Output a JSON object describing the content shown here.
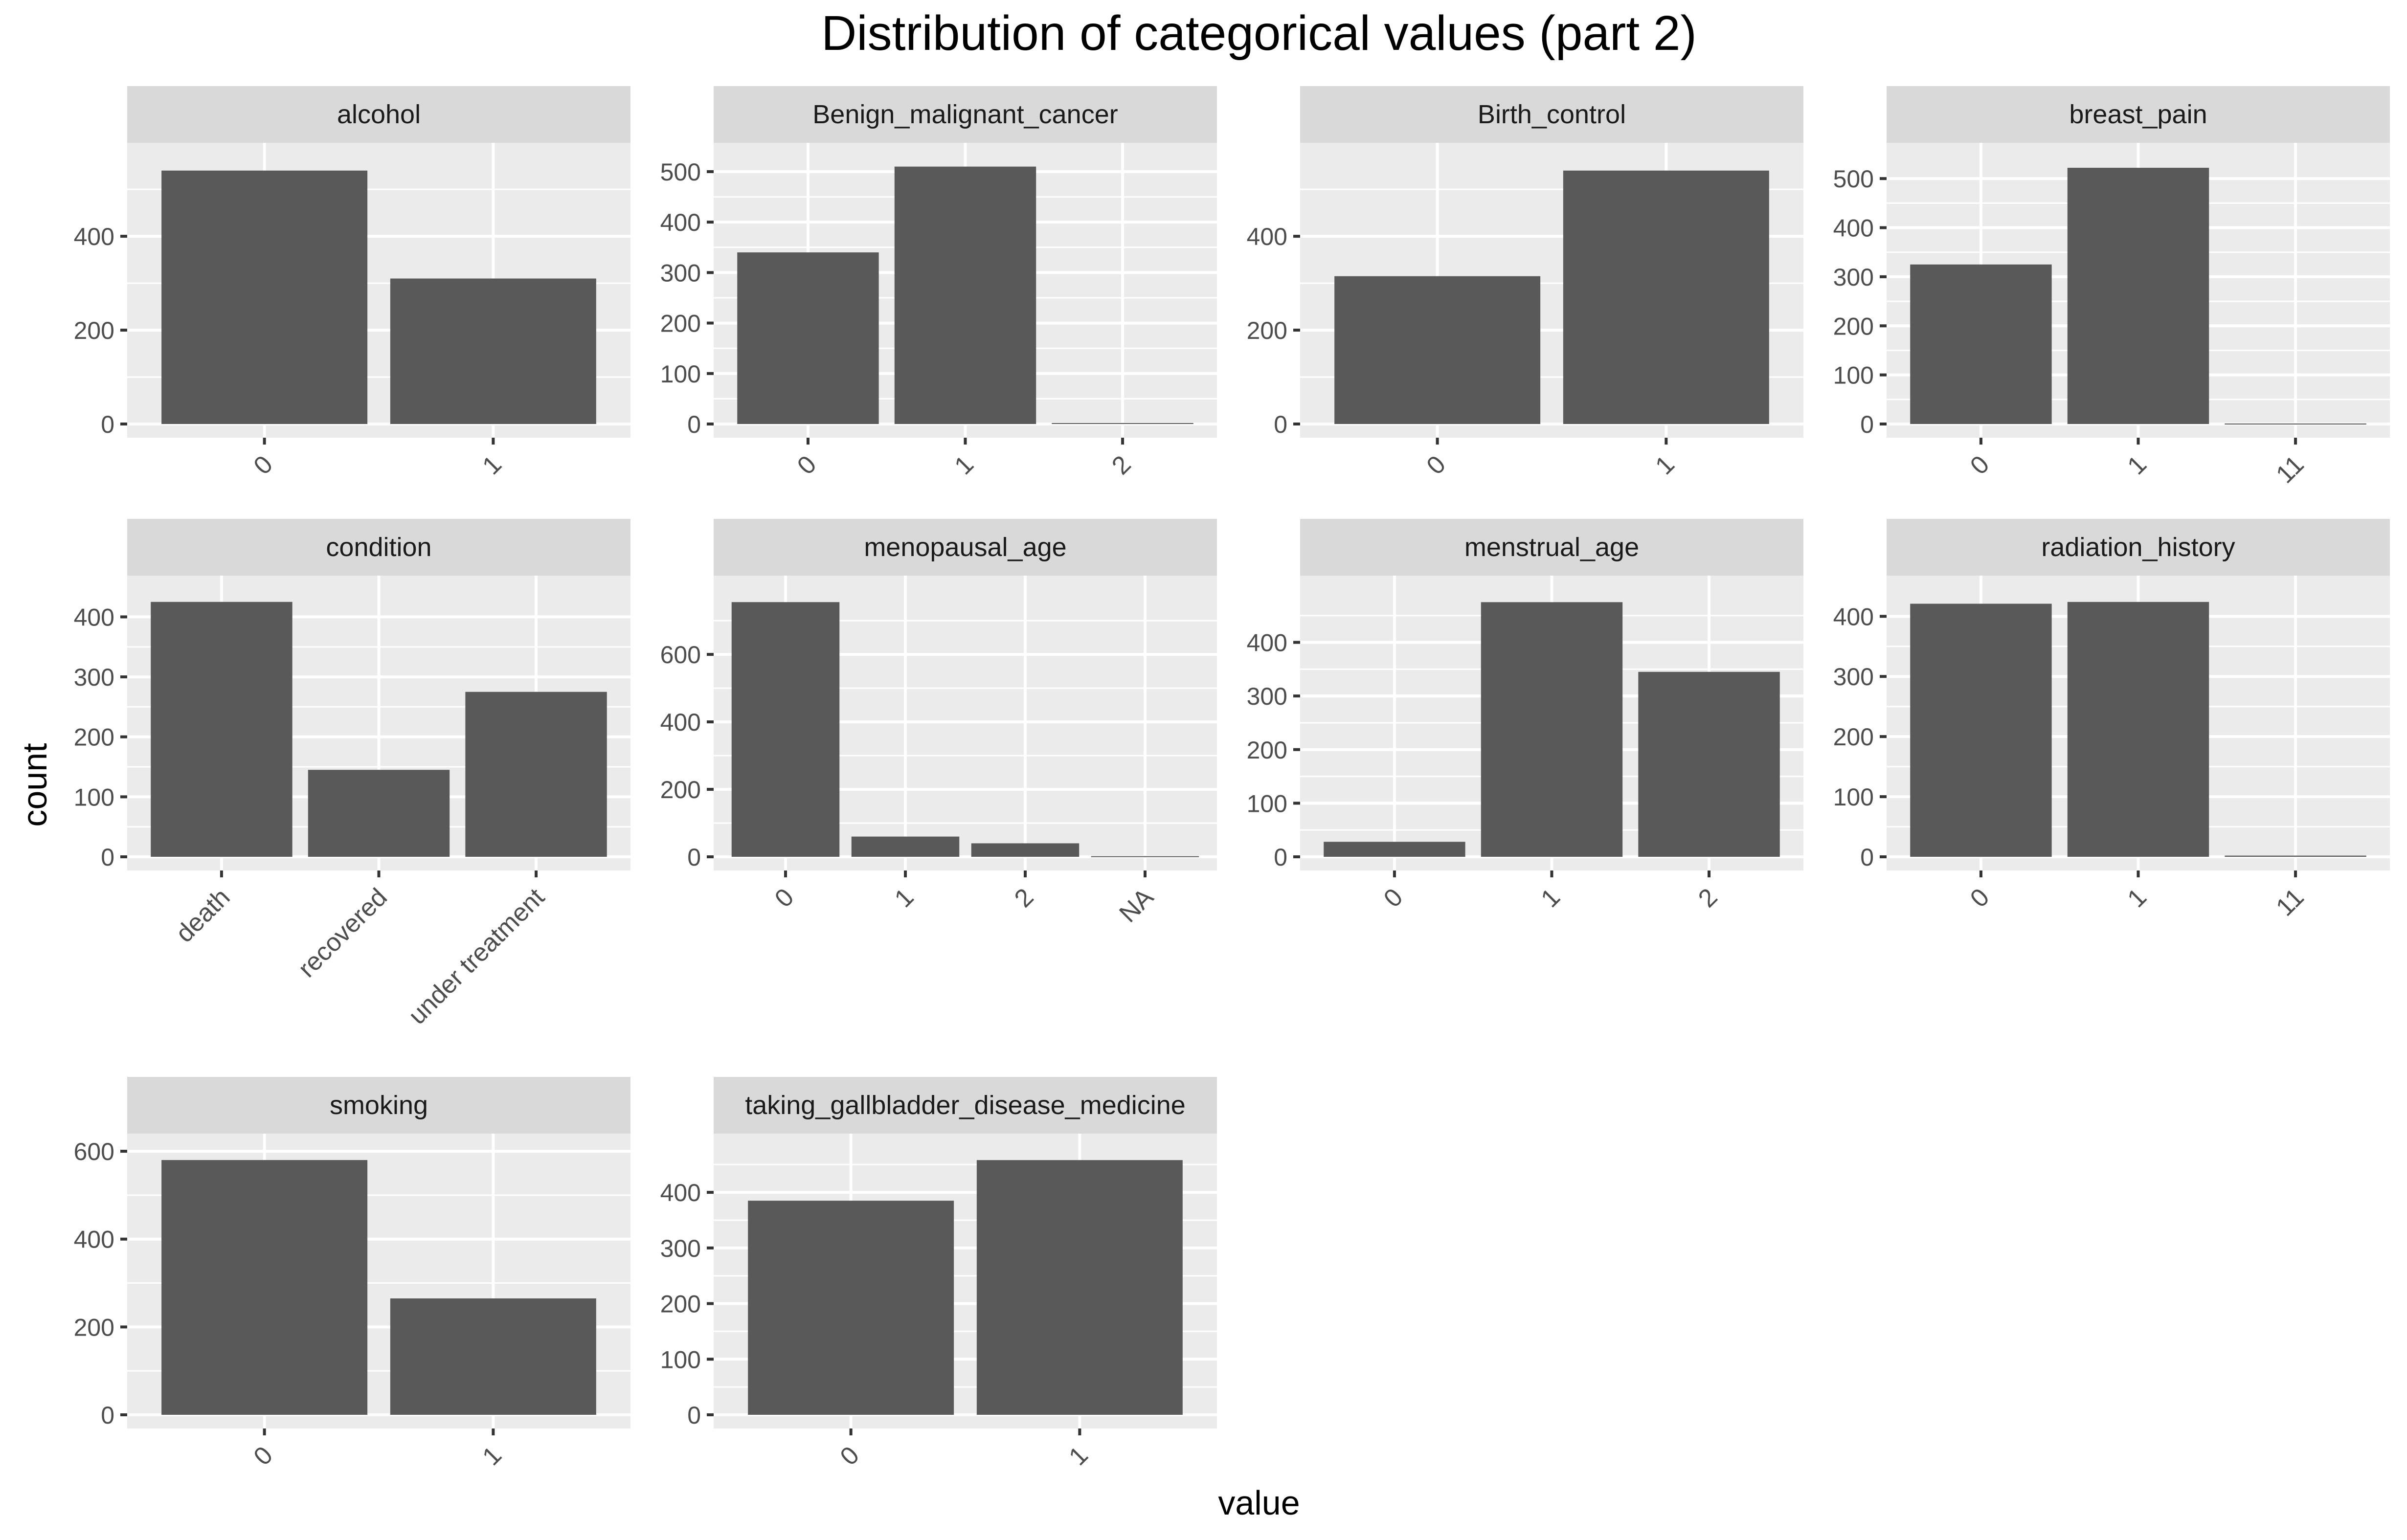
{
  "figure": {
    "title": "Distribution of categorical values (part 2)",
    "xlabel": "value",
    "ylabel": "count"
  },
  "colors": {
    "bar": "#595959",
    "panel_bg": "#EBEBEB",
    "strip_bg": "#D9D9D9",
    "grid": "#FFFFFF",
    "text": "#1A1A1A",
    "tick_text": "#4D4D4D",
    "tick_mark": "#333333"
  },
  "chart_data": [
    {
      "type": "bar",
      "title": "alcohol",
      "categories": [
        "0",
        "1"
      ],
      "values": [
        540,
        310
      ],
      "ylim": [
        0,
        570
      ],
      "yticks": [
        0,
        200,
        400
      ],
      "grid": true
    },
    {
      "type": "bar",
      "title": "Benign_malignant_cancer",
      "categories": [
        "0",
        "1",
        "2"
      ],
      "values": [
        340,
        510,
        2
      ],
      "ylim": [
        0,
        530
      ],
      "yticks": [
        0,
        100,
        200,
        300,
        400,
        500
      ],
      "grid": true
    },
    {
      "type": "bar",
      "title": "Birth_control",
      "categories": [
        "0",
        "1"
      ],
      "values": [
        315,
        540
      ],
      "ylim": [
        0,
        570
      ],
      "yticks": [
        0,
        200,
        400
      ],
      "grid": true
    },
    {
      "type": "bar",
      "title": "breast_pain",
      "categories": [
        "0",
        "1",
        "11"
      ],
      "values": [
        325,
        522,
        1
      ],
      "ylim": [
        0,
        545
      ],
      "yticks": [
        0,
        100,
        200,
        300,
        400,
        500
      ],
      "grid": true
    },
    {
      "type": "bar",
      "title": "condition",
      "categories": [
        "death",
        "recovered",
        "under treatment"
      ],
      "values": [
        425,
        145,
        275
      ],
      "ylim": [
        0,
        446
      ],
      "yticks": [
        0,
        100,
        200,
        300,
        400
      ],
      "grid": true
    },
    {
      "type": "bar",
      "title": "menopausal_age",
      "categories": [
        "0",
        "1",
        "2",
        "NA"
      ],
      "values": [
        755,
        60,
        40,
        2
      ],
      "ylim": [
        0,
        793
      ],
      "yticks": [
        0,
        200,
        400,
        600
      ],
      "grid": true
    },
    {
      "type": "bar",
      "title": "menstrual_age",
      "categories": [
        "0",
        "1",
        "2"
      ],
      "values": [
        28,
        475,
        345
      ],
      "ylim": [
        0,
        499
      ],
      "yticks": [
        0,
        100,
        200,
        300,
        400
      ],
      "grid": true
    },
    {
      "type": "bar",
      "title": "radiation_history",
      "categories": [
        "0",
        "1",
        "11"
      ],
      "values": [
        421,
        424,
        2
      ],
      "ylim": [
        0,
        445
      ],
      "yticks": [
        0,
        100,
        200,
        300,
        400
      ],
      "grid": true
    },
    {
      "type": "bar",
      "title": "smoking",
      "categories": [
        "0",
        "1"
      ],
      "values": [
        580,
        265
      ],
      "ylim": [
        0,
        609
      ],
      "yticks": [
        0,
        200,
        400,
        600
      ],
      "grid": true
    },
    {
      "type": "bar",
      "title": "taking_gallbladder_disease_medicine",
      "categories": [
        "0",
        "1"
      ],
      "values": [
        385,
        458
      ],
      "ylim": [
        0,
        481
      ],
      "yticks": [
        0,
        100,
        200,
        300,
        400
      ],
      "grid": true
    }
  ]
}
